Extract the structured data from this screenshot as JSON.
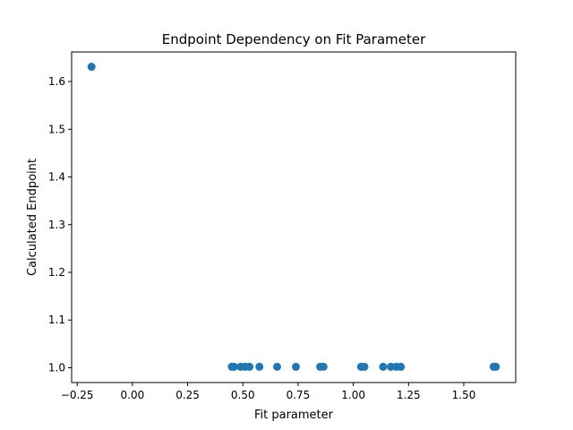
{
  "chart_data": {
    "type": "scatter",
    "title": "Endpoint Dependency on Fit Parameter",
    "xlabel": "Fit parameter",
    "ylabel": "Calculated Endpoint",
    "xlim": [
      -0.275,
      1.735
    ],
    "ylim": [
      0.969,
      1.662
    ],
    "xticks": [
      -0.25,
      0.0,
      0.25,
      0.5,
      0.75,
      1.0,
      1.25,
      1.5
    ],
    "xtick_labels": [
      "−0.25",
      "0.00",
      "0.25",
      "0.50",
      "0.75",
      "1.00",
      "1.25",
      "1.50"
    ],
    "yticks": [
      1.0,
      1.1,
      1.2,
      1.3,
      1.4,
      1.5,
      1.6
    ],
    "ytick_labels": [
      "1.0",
      "1.1",
      "1.2",
      "1.3",
      "1.4",
      "1.5",
      "1.6"
    ],
    "grid": false,
    "marker_color": "#1f77b4",
    "points": [
      {
        "x": -0.185,
        "y": 1.631
      },
      {
        "x": 0.45,
        "y": 1.002
      },
      {
        "x": 0.46,
        "y": 1.002
      },
      {
        "x": 0.49,
        "y": 1.002
      },
      {
        "x": 0.51,
        "y": 1.002
      },
      {
        "x": 0.53,
        "y": 1.002
      },
      {
        "x": 0.575,
        "y": 1.002
      },
      {
        "x": 0.655,
        "y": 1.002
      },
      {
        "x": 0.74,
        "y": 1.002
      },
      {
        "x": 0.85,
        "y": 1.002
      },
      {
        "x": 0.865,
        "y": 1.002
      },
      {
        "x": 1.035,
        "y": 1.002
      },
      {
        "x": 1.05,
        "y": 1.002
      },
      {
        "x": 1.135,
        "y": 1.002
      },
      {
        "x": 1.17,
        "y": 1.002
      },
      {
        "x": 1.195,
        "y": 1.002
      },
      {
        "x": 1.215,
        "y": 1.002
      },
      {
        "x": 1.635,
        "y": 1.002
      },
      {
        "x": 1.645,
        "y": 1.002
      }
    ]
  }
}
